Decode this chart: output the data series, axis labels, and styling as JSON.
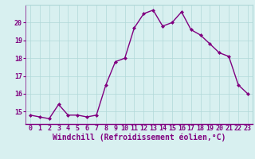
{
  "x": [
    0,
    1,
    2,
    3,
    4,
    5,
    6,
    7,
    8,
    9,
    10,
    11,
    12,
    13,
    14,
    15,
    16,
    17,
    18,
    19,
    20,
    21,
    22,
    23
  ],
  "y": [
    14.8,
    14.7,
    14.6,
    15.4,
    14.8,
    14.8,
    14.7,
    14.8,
    16.5,
    17.8,
    18.0,
    19.7,
    20.5,
    20.7,
    19.8,
    20.0,
    20.6,
    19.6,
    19.3,
    18.8,
    18.3,
    18.1,
    16.5,
    16.0
  ],
  "line_color": "#800080",
  "marker": "D",
  "marker_size": 2,
  "linewidth": 1.0,
  "xlabel": "Windchill (Refroidissement éolien,°C)",
  "xlabel_fontsize": 7,
  "background_color": "#d8f0f0",
  "grid_color": "#b0d8d8",
  "yticks": [
    15,
    16,
    17,
    18,
    19,
    20
  ],
  "ylim": [
    14.3,
    21.0
  ],
  "xticks": [
    0,
    1,
    2,
    3,
    4,
    5,
    6,
    7,
    8,
    9,
    10,
    11,
    12,
    13,
    14,
    15,
    16,
    17,
    18,
    19,
    20,
    21,
    22,
    23
  ],
  "xlim": [
    -0.5,
    23.5
  ],
  "tick_fontsize": 6,
  "tick_color": "#800080",
  "spine_color": "#800080"
}
